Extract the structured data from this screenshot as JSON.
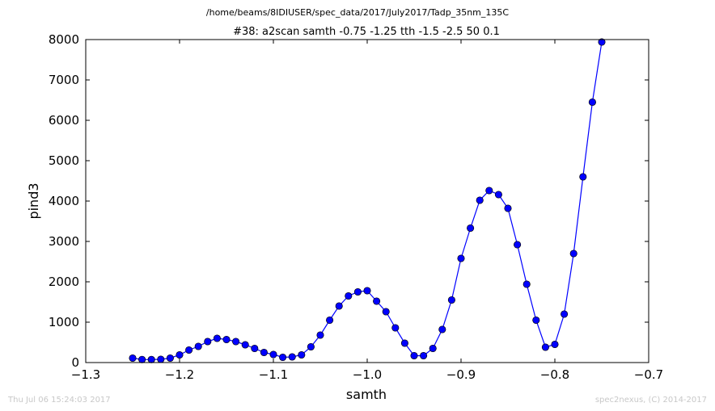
{
  "chart_data": {
    "type": "line",
    "suptitle": "/home/beams/8IDIUSER/spec_data/2017/July2017/Tadp_35nm_135C",
    "title": "#38: a2scan  samth -0.75 -1.25  tth -1.5 -2.5  50 0.1",
    "xlabel": "samth",
    "ylabel": "pind3",
    "xlim": [
      -1.3,
      -0.7
    ],
    "ylim": [
      0,
      8000
    ],
    "xticks": [
      -1.3,
      -1.2,
      -1.1,
      -1.0,
      -0.9,
      -0.8,
      -0.7
    ],
    "xtick_labels": [
      "−1.3",
      "−1.2",
      "−1.1",
      "−1.0",
      "−0.9",
      "−0.8",
      "−0.7"
    ],
    "yticks": [
      0,
      1000,
      2000,
      3000,
      4000,
      5000,
      6000,
      7000,
      8000
    ],
    "ytick_labels": [
      "0",
      "1000",
      "2000",
      "3000",
      "4000",
      "5000",
      "6000",
      "7000",
      "8000"
    ],
    "grid": false,
    "series_color": "#0000ff",
    "x": [
      -1.25,
      -1.24,
      -1.23,
      -1.22,
      -1.21,
      -1.2,
      -1.19,
      -1.18,
      -1.17,
      -1.16,
      -1.15,
      -1.14,
      -1.13,
      -1.12,
      -1.11,
      -1.1,
      -1.09,
      -1.08,
      -1.07,
      -1.06,
      -1.05,
      -1.04,
      -1.03,
      -1.02,
      -1.01,
      -1.0,
      -0.99,
      -0.98,
      -0.97,
      -0.96,
      -0.95,
      -0.94,
      -0.93,
      -0.92,
      -0.91,
      -0.9,
      -0.89,
      -0.88,
      -0.87,
      -0.86,
      -0.85,
      -0.84,
      -0.83,
      -0.82,
      -0.81,
      -0.8,
      -0.79,
      -0.78,
      -0.77,
      -0.76,
      -0.75
    ],
    "y": [
      110,
      75,
      75,
      80,
      110,
      190,
      310,
      400,
      520,
      600,
      570,
      520,
      440,
      350,
      250,
      200,
      130,
      140,
      190,
      390,
      680,
      1050,
      1400,
      1650,
      1750,
      1780,
      1520,
      1260,
      860,
      480,
      170,
      170,
      350,
      820,
      1550,
      2580,
      3330,
      4020,
      4260,
      4160,
      3820,
      2920,
      1940,
      1050,
      380,
      450,
      1200,
      2700,
      4600,
      6450,
      7940
    ]
  },
  "footer": {
    "timestamp": "Thu Jul 06 15:24:03 2017",
    "credit": "spec2nexus, (C) 2014-2017"
  }
}
